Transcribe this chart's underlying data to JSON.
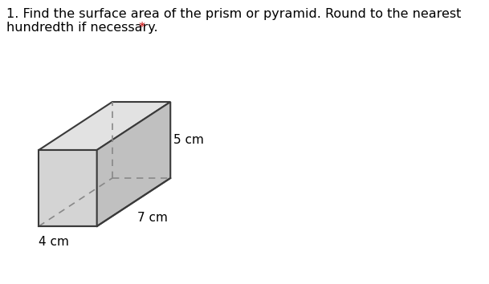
{
  "title_line1": "1. Find the surface area of the prism or pyramid. Round to the nearest",
  "title_line2": "hundredth if necessary.",
  "asterisk": " *",
  "dim_height": "5 cm",
  "dim_length": "7 cm",
  "dim_width": "4 cm",
  "bg_color": "#ffffff",
  "face_color_left": "#d4d4d4",
  "face_color_right": "#c0c0c0",
  "face_color_top": "#e2e2e2",
  "edge_color": "#3a3a3a",
  "dashed_color": "#888888",
  "text_color": "#000000",
  "asterisk_color": "#cc0000",
  "font_size_title": 11.5,
  "font_size_labels": 11
}
